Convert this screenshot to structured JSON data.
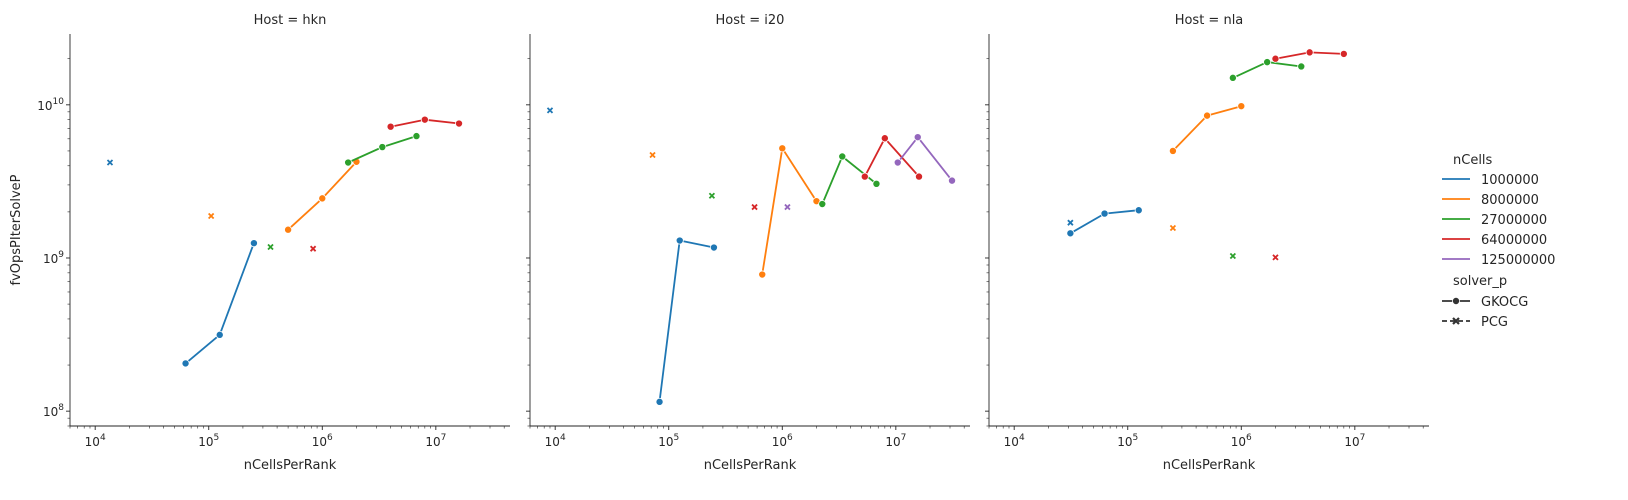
{
  "chart_data": {
    "type": "line",
    "xlabel": "nCellsPerRank",
    "ylabel": "fvOpsPIterSolveP",
    "xscale": "log",
    "yscale": "log",
    "xlim": [
      6000,
      45000000
    ],
    "ylim": [
      80000000,
      29000000000
    ],
    "x_ticks": [
      {
        "value": 10000,
        "base": "10",
        "exp": "4"
      },
      {
        "value": 100000,
        "base": "10",
        "exp": "5"
      },
      {
        "value": 1000000,
        "base": "10",
        "exp": "6"
      },
      {
        "value": 10000000,
        "base": "10",
        "exp": "7"
      }
    ],
    "y_ticks": [
      {
        "value": 100000000,
        "base": "10",
        "exp": "8"
      },
      {
        "value": 1000000000,
        "base": "10",
        "exp": "9"
      },
      {
        "value": 10000000000,
        "base": "10",
        "exp": "10"
      }
    ],
    "grid": false,
    "legend_position": "right",
    "colors": {
      "1000000": "#1f77b4",
      "8000000": "#ff7f0e",
      "27000000": "#2ca02c",
      "64000000": "#d62728",
      "125000000": "#9467bd"
    },
    "legend": {
      "hue_title": "nCells",
      "hue_entries": [
        "1000000",
        "8000000",
        "27000000",
        "64000000",
        "125000000"
      ],
      "style_title": "solver_p",
      "style_entries": [
        {
          "label": "GKOCG",
          "marker": "circle"
        },
        {
          "label": "PCG",
          "marker": "x"
        }
      ]
    },
    "panels": [
      {
        "title": "Host = hkn",
        "series": [
          {
            "nCells": "1000000",
            "solver_p": "GKOCG",
            "points": [
              [
                62500,
                205000000
              ],
              [
                125000,
                315000000
              ],
              [
                250000,
                1250000000
              ]
            ]
          },
          {
            "nCells": "8000000",
            "solver_p": "GKOCG",
            "points": [
              [
                500000,
                1530000000
              ],
              [
                1000000,
                2450000000
              ],
              [
                2000000,
                4250000000
              ]
            ]
          },
          {
            "nCells": "27000000",
            "solver_p": "GKOCG",
            "points": [
              [
                1690000,
                4200000000
              ],
              [
                3380000,
                5300000000
              ],
              [
                6750000,
                6250000000
              ]
            ]
          },
          {
            "nCells": "64000000",
            "solver_p": "GKOCG",
            "points": [
              [
                4000000,
                7200000000
              ],
              [
                8000000,
                8000000000
              ],
              [
                16000000,
                7550000000
              ]
            ]
          },
          {
            "nCells": "1000000",
            "solver_p": "PCG",
            "points": [
              [
                13500,
                4200000000
              ]
            ]
          },
          {
            "nCells": "8000000",
            "solver_p": "PCG",
            "points": [
              [
                105000,
                1880000000
              ]
            ]
          },
          {
            "nCells": "27000000",
            "solver_p": "PCG",
            "points": [
              [
                350000,
                1180000000
              ]
            ]
          },
          {
            "nCells": "64000000",
            "solver_p": "PCG",
            "points": [
              [
                830000,
                1150000000
              ]
            ]
          }
        ]
      },
      {
        "title": "Host = i20",
        "series": [
          {
            "nCells": "1000000",
            "solver_p": "GKOCG",
            "points": [
              [
                83000,
                115000000
              ],
              [
                125000,
                1300000000
              ],
              [
                250000,
                1170000000
              ]
            ]
          },
          {
            "nCells": "8000000",
            "solver_p": "GKOCG",
            "points": [
              [
                666000,
                780000000
              ],
              [
                1000000,
                5200000000
              ],
              [
                2000000,
                2350000000
              ]
            ]
          },
          {
            "nCells": "27000000",
            "solver_p": "GKOCG",
            "points": [
              [
                2250000,
                2250000000
              ],
              [
                3375000,
                4600000000
              ],
              [
                6750000,
                3050000000
              ]
            ]
          },
          {
            "nCells": "64000000",
            "solver_p": "GKOCG",
            "points": [
              [
                5330000,
                3400000000
              ],
              [
                8000000,
                6050000000
              ],
              [
                16000000,
                3400000000
              ]
            ]
          },
          {
            "nCells": "125000000",
            "solver_p": "GKOCG",
            "points": [
              [
                10400000,
                4200000000
              ],
              [
                15600000,
                6150000000
              ],
              [
                31250000,
                3200000000
              ]
            ]
          },
          {
            "nCells": "1000000",
            "solver_p": "PCG",
            "points": [
              [
                9000,
                9200000000
              ]
            ]
          },
          {
            "nCells": "8000000",
            "solver_p": "PCG",
            "points": [
              [
                72000,
                4700000000
              ]
            ]
          },
          {
            "nCells": "27000000",
            "solver_p": "PCG",
            "points": [
              [
                240000,
                2550000000
              ]
            ]
          },
          {
            "nCells": "64000000",
            "solver_p": "PCG",
            "points": [
              [
                570000,
                2150000000
              ]
            ]
          },
          {
            "nCells": "125000000",
            "solver_p": "PCG",
            "points": [
              [
                1110000,
                2150000000
              ]
            ]
          }
        ]
      },
      {
        "title": "Host = nla",
        "series": [
          {
            "nCells": "1000000",
            "solver_p": "GKOCG",
            "points": [
              [
                31250,
                1450000000
              ],
              [
                62500,
                1950000000
              ],
              [
                125000,
                2050000000
              ]
            ]
          },
          {
            "nCells": "8000000",
            "solver_p": "GKOCG",
            "points": [
              [
                250000,
                5000000000
              ],
              [
                500000,
                8500000000
              ],
              [
                1000000,
                9800000000
              ]
            ]
          },
          {
            "nCells": "27000000",
            "solver_p": "GKOCG",
            "points": [
              [
                843000,
                15000000000
              ],
              [
                1690000,
                19000000000
              ],
              [
                3375000,
                17800000000
              ]
            ]
          },
          {
            "nCells": "64000000",
            "solver_p": "GKOCG",
            "points": [
              [
                2000000,
                20000000000
              ],
              [
                4000000,
                22000000000
              ],
              [
                8000000,
                21500000000
              ]
            ]
          },
          {
            "nCells": "1000000",
            "solver_p": "PCG",
            "points": [
              [
                31250,
                1700000000
              ]
            ]
          },
          {
            "nCells": "8000000",
            "solver_p": "PCG",
            "points": [
              [
                250000,
                1570000000
              ]
            ]
          },
          {
            "nCells": "27000000",
            "solver_p": "PCG",
            "points": [
              [
                843000,
                1030000000
              ]
            ]
          },
          {
            "nCells": "64000000",
            "solver_p": "PCG",
            "points": [
              [
                2000000,
                1010000000
              ]
            ]
          }
        ]
      }
    ]
  }
}
